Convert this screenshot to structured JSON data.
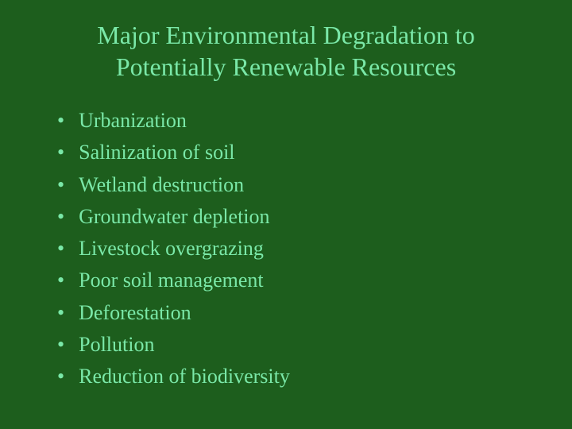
{
  "slide": {
    "title": "Major Environmental Degradation to Potentially Renewable Resources",
    "bullets": [
      "Urbanization",
      "Salinization of soil",
      "Wetland destruction",
      "Groundwater depletion",
      "Livestock overgrazing",
      "Poor soil management",
      "Deforestation",
      "Pollution",
      "Reduction of biodiversity"
    ],
    "background_color": "#1d5e1d",
    "text_color": "#7ae8a8",
    "title_fontsize": 32,
    "bullet_fontsize": 26,
    "font_family": "Georgia, Times New Roman, serif"
  }
}
